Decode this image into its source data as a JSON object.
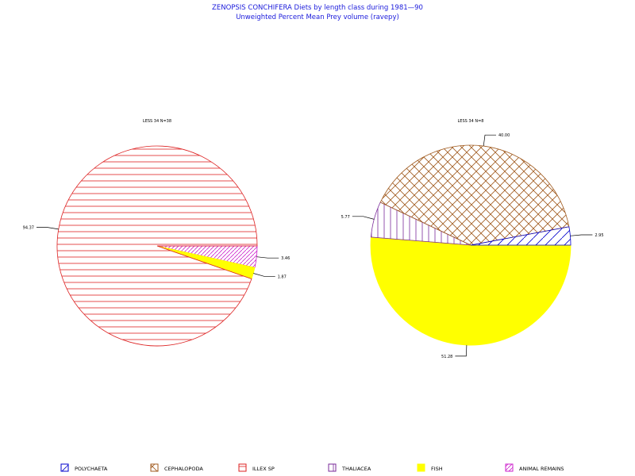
{
  "title": "ZENOPSIS  CONCHIFERA  Diets  by  length  class  during  1981—90",
  "subtitle": "Unweighted  Percent  Mean  Prey  volume  (ravepy)",
  "chart_data": [
    {
      "type": "pie",
      "label": "LESS 34 N=38",
      "slices": [
        {
          "category": "ILLEX SP",
          "value": 94.37,
          "label": "94.37"
        },
        {
          "category": "ANIMAL REMAINS",
          "value": 3.46,
          "label": "3.46"
        },
        {
          "category": "FISH",
          "value": 1.87,
          "label": "1.87"
        }
      ]
    },
    {
      "type": "pie",
      "label": "LESS 34 N=8",
      "slices": [
        {
          "category": "FISH",
          "value": 51.28,
          "label": "51.28"
        },
        {
          "category": "THALIACEA",
          "value": 5.77,
          "label": "5.77"
        },
        {
          "category": "CEPHALOPODA",
          "value": 40.0,
          "label": "40.00"
        },
        {
          "category": "POLYCHAETA",
          "value": 2.95,
          "label": "2.95"
        }
      ]
    }
  ],
  "legend": [
    {
      "name": "POLYCHAETA",
      "stroke": "#0000cc",
      "fill": "none",
      "pattern": "none"
    },
    {
      "name": "CEPHALOPODA",
      "stroke": "#a05a1e",
      "fill": "none",
      "pattern": "crosshatch"
    },
    {
      "name": "ILLEX SP",
      "stroke": "#dd2222",
      "fill": "none",
      "pattern": "horizontal"
    },
    {
      "name": "THALIACEA",
      "stroke": "#7a2a9a",
      "fill": "none",
      "pattern": "vertical"
    },
    {
      "name": "FISH",
      "stroke": "#ffff00",
      "fill": "#ffff00",
      "pattern": "solid"
    },
    {
      "name": "ANIMAL REMAINS",
      "stroke": "#cc22cc",
      "fill": "none",
      "pattern": "diagonal"
    }
  ]
}
